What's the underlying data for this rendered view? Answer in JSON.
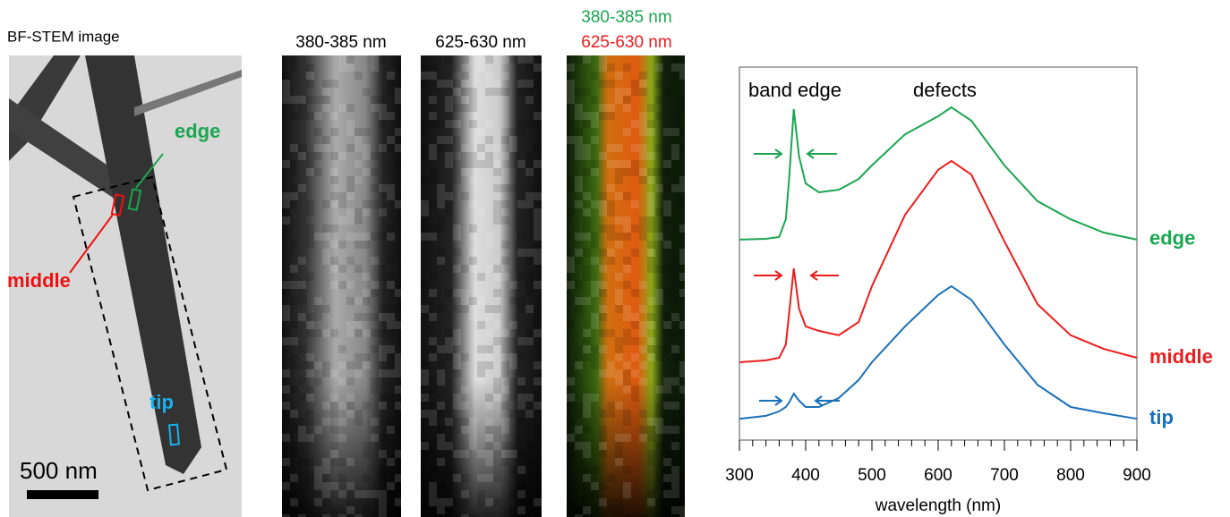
{
  "figure": {
    "bf_stem": {
      "title": "BF-STEM image",
      "edge": "edge",
      "middle": "middle",
      "tip": "tip",
      "scale_bar": "500 nm"
    },
    "map_titles": [
      "380-385 nm",
      "625-630 nm"
    ],
    "overlay_titles": [
      "380-385 nm",
      "625-630 nm"
    ]
  },
  "chart_data": {
    "type": "line",
    "xlabel": "wavelength (nm)",
    "annotations": [
      "band edge",
      "defects"
    ],
    "x": [
      300,
      340,
      360,
      370,
      375,
      382,
      390,
      400,
      420,
      450,
      480,
      500,
      550,
      600,
      620,
      650,
      700,
      750,
      800,
      850,
      900
    ],
    "series": [
      {
        "name": "edge",
        "color": "#1aa650",
        "values": [
          53.3,
          53.5,
          54.0,
          58.8,
          69.7,
          88.6,
          75.8,
          68.5,
          66.1,
          66.8,
          69.7,
          73.4,
          81.8,
          86.7,
          89.1,
          85.5,
          73.4,
          63.7,
          58.8,
          55.2,
          53.3
        ]
      },
      {
        "name": "middle",
        "color": "#ee1c1c",
        "values": [
          20.1,
          20.6,
          21.3,
          24.9,
          33.4,
          45.5,
          34.6,
          29.8,
          28.6,
          27.4,
          31.0,
          40.7,
          60.0,
          72.2,
          74.6,
          70.9,
          52.8,
          35.8,
          27.4,
          23.7,
          21.3
        ]
      },
      {
        "name": "tip",
        "color": "#1a70b8",
        "values": [
          4.8,
          5.6,
          6.8,
          8.0,
          9.2,
          11.6,
          9.7,
          8.0,
          8.0,
          10.4,
          15.3,
          20.1,
          29.8,
          38.3,
          40.7,
          37.0,
          24.9,
          14.0,
          8.0,
          6.3,
          4.8
        ]
      }
    ],
    "xlim": [
      300,
      900
    ],
    "ylim": [
      0,
      100
    ],
    "xticks": [
      300,
      400,
      500,
      600,
      700,
      800,
      900
    ],
    "xminorticks": [
      320,
      340,
      360,
      380,
      420,
      440,
      460,
      480,
      520,
      540,
      560,
      580,
      620,
      640,
      660,
      680,
      720,
      740,
      760,
      780,
      820,
      840,
      860,
      880
    ]
  }
}
